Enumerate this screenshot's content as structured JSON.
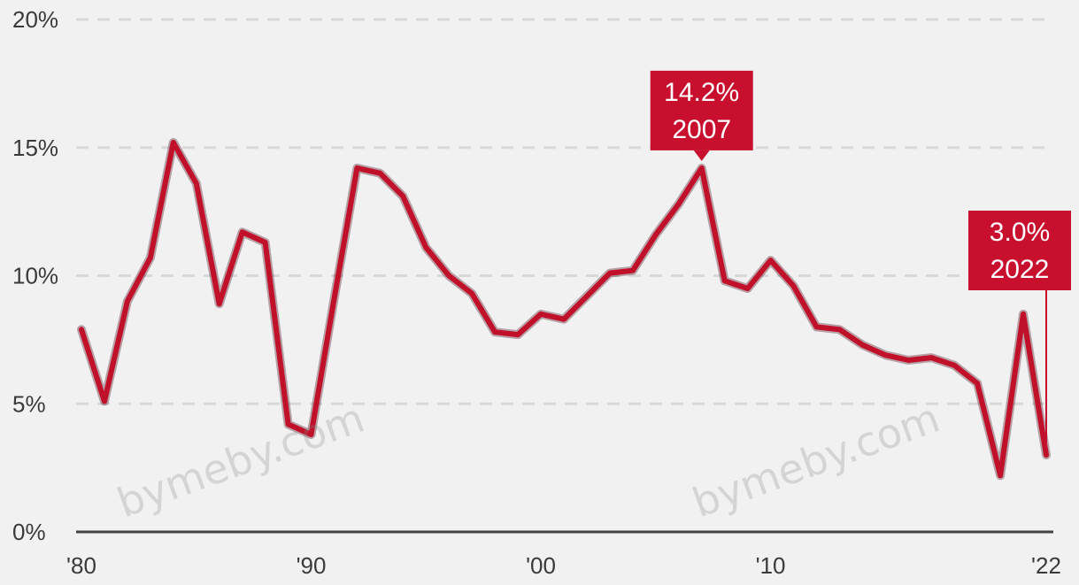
{
  "chart_data": {
    "type": "line",
    "title": "",
    "xlabel": "",
    "ylabel": "",
    "ylim": [
      0,
      20
    ],
    "xlim": [
      1980,
      2022
    ],
    "y_ticks": [
      "0%",
      "5%",
      "10%",
      "15%",
      "20%"
    ],
    "y_tick_values": [
      0,
      5,
      10,
      15,
      20
    ],
    "x_ticks": [
      "'80",
      "'90",
      "'00",
      "'10",
      "'22"
    ],
    "x_tick_values": [
      1980,
      1990,
      2000,
      2010,
      2022
    ],
    "grid": true,
    "legend": "none",
    "color": "#c0102a",
    "series": [
      {
        "x": [
          1980,
          1981,
          1982,
          1983,
          1984,
          1985,
          1986,
          1987,
          1988,
          1989,
          1990,
          1991,
          1992,
          1993,
          1994,
          1995,
          1996,
          1997,
          1998,
          1999,
          2000,
          2001,
          2002,
          2003,
          2004,
          2005,
          2006,
          2007,
          2008,
          2009,
          2010,
          2011,
          2012,
          2013,
          2014,
          2015,
          2016,
          2017,
          2018,
          2019,
          2020,
          2021,
          2022
        ],
        "values": [
          7.9,
          5.1,
          9.0,
          10.7,
          15.2,
          13.6,
          8.9,
          11.7,
          11.3,
          4.2,
          3.8,
          9.1,
          14.2,
          14.0,
          13.1,
          11.1,
          10.0,
          9.3,
          7.8,
          7.7,
          8.5,
          8.3,
          9.2,
          10.1,
          10.2,
          11.6,
          12.8,
          14.2,
          9.8,
          9.5,
          10.6,
          9.6,
          8.0,
          7.9,
          7.3,
          6.9,
          6.7,
          6.8,
          6.5,
          5.8,
          2.2,
          8.5,
          3.0
        ]
      }
    ],
    "annotations": [
      {
        "value": "14.2%",
        "year": "2007",
        "x": 2007,
        "y": 14.2
      },
      {
        "value": "3.0%",
        "year": "2022",
        "x": 2022,
        "y": 3.0
      }
    ]
  },
  "watermarks": [
    "bymeby.com",
    "bymeby.com"
  ]
}
